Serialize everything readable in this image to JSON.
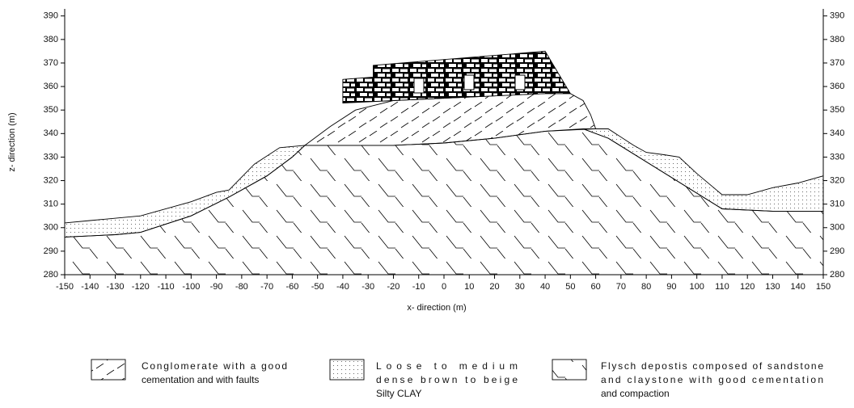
{
  "xlabel": "x- direction (m)",
  "ylabel": "z- direction (m)",
  "xlim": [
    -150,
    150
  ],
  "xticks": [
    -150,
    -140,
    -130,
    -120,
    -110,
    -100,
    -90,
    -80,
    -70,
    -60,
    -50,
    -40,
    -30,
    -20,
    -10,
    0,
    10,
    20,
    30,
    40,
    50,
    60,
    70,
    80,
    90,
    100,
    110,
    120,
    130,
    140,
    150
  ],
  "ylim": [
    280,
    393
  ],
  "yticks": [
    280,
    290,
    300,
    310,
    320,
    330,
    340,
    350,
    360,
    370,
    380,
    390
  ],
  "layers": [
    {
      "fill": "flysch",
      "x": [
        -150,
        -130,
        -120,
        -100,
        -85,
        -70,
        -60,
        -55,
        -40,
        -20,
        0,
        20,
        40,
        55,
        65,
        80,
        95,
        110,
        130,
        150,
        150,
        -150
      ],
      "z": [
        296,
        297,
        298,
        305,
        313,
        322,
        330,
        335,
        335,
        335,
        336,
        338,
        341,
        342,
        338,
        328,
        318,
        308,
        307,
        307,
        280,
        280
      ]
    },
    {
      "fill": "dots",
      "x": [
        -150,
        -140,
        -120,
        -100,
        -90,
        -85,
        -75,
        -65,
        -55,
        -60,
        -70,
        -85,
        -100,
        -120,
        -130,
        -150
      ],
      "z": [
        302,
        303,
        305,
        311,
        315,
        316,
        327,
        334,
        335,
        330,
        322,
        313,
        305,
        298,
        297,
        296
      ]
    },
    {
      "fill": "dots",
      "x": [
        60,
        65,
        75,
        80,
        87,
        93,
        100,
        110,
        120,
        130,
        140,
        150,
        150,
        130,
        110,
        95,
        80,
        65,
        55
      ],
      "z": [
        342,
        342,
        335,
        332,
        331,
        330,
        323,
        314,
        314,
        317,
        319,
        322,
        307,
        307,
        308,
        318,
        328,
        338,
        342
      ]
    },
    {
      "fill": "dash",
      "x": [
        -55,
        -45,
        -35,
        -20,
        0,
        20,
        40,
        50,
        55,
        58,
        60,
        40,
        20,
        0,
        -20,
        -40
      ],
      "z": [
        335,
        343,
        350,
        354,
        355,
        356,
        357,
        357,
        354,
        348,
        342,
        341,
        338,
        336,
        335,
        335
      ]
    },
    {
      "fill": "masonry",
      "x": [
        -40,
        -20,
        0,
        20,
        40,
        50,
        45,
        40,
        -28,
        -28,
        -40
      ],
      "z": [
        353,
        354,
        355,
        356,
        357,
        357,
        366,
        375,
        369,
        364,
        363
      ]
    }
  ],
  "legend": [
    {
      "fill": "dash",
      "lines": [
        "Conglomerate with a good",
        "cementation and with faults"
      ]
    },
    {
      "fill": "dots",
      "lines": [
        "Loose to medium",
        "dense brown to beige",
        "Silty CLAY"
      ]
    },
    {
      "fill": "flysch",
      "lines": [
        "Flysch depostis composed of sandstone",
        "and claystone with good cementation",
        "and compaction"
      ]
    }
  ]
}
